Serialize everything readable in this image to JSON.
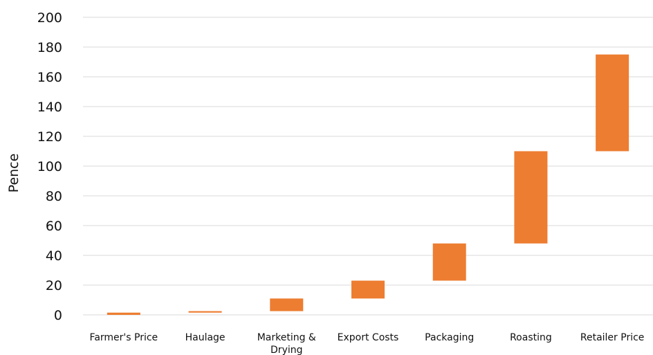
{
  "chart_data": {
    "type": "waterfall",
    "title": "",
    "xlabel": "",
    "ylabel": "Pence",
    "ylim": [
      0,
      200
    ],
    "yticks": [
      0,
      20,
      40,
      60,
      80,
      100,
      120,
      140,
      160,
      180,
      200
    ],
    "grid": true,
    "legend": "none",
    "bar_color": "#ed7d31",
    "categories": [
      [
        "Farmer's Price"
      ],
      [
        "Haulage"
      ],
      [
        "Marketing &",
        "Drying"
      ],
      [
        "Export Costs"
      ],
      [
        "Packaging"
      ],
      [
        "Roasting"
      ],
      [
        "Retailer Price"
      ]
    ],
    "bars": [
      {
        "category": "Farmer's Price",
        "start": 0,
        "end": 1.5
      },
      {
        "category": "Haulage",
        "start": 1.5,
        "end": 2.5
      },
      {
        "category": "Marketing & Drying",
        "start": 2.5,
        "end": 11
      },
      {
        "category": "Export Costs",
        "start": 11,
        "end": 23
      },
      {
        "category": "Packaging",
        "start": 23,
        "end": 48
      },
      {
        "category": "Roasting",
        "start": 48,
        "end": 110
      },
      {
        "category": "Retailer Price",
        "start": 110,
        "end": 175
      }
    ]
  }
}
